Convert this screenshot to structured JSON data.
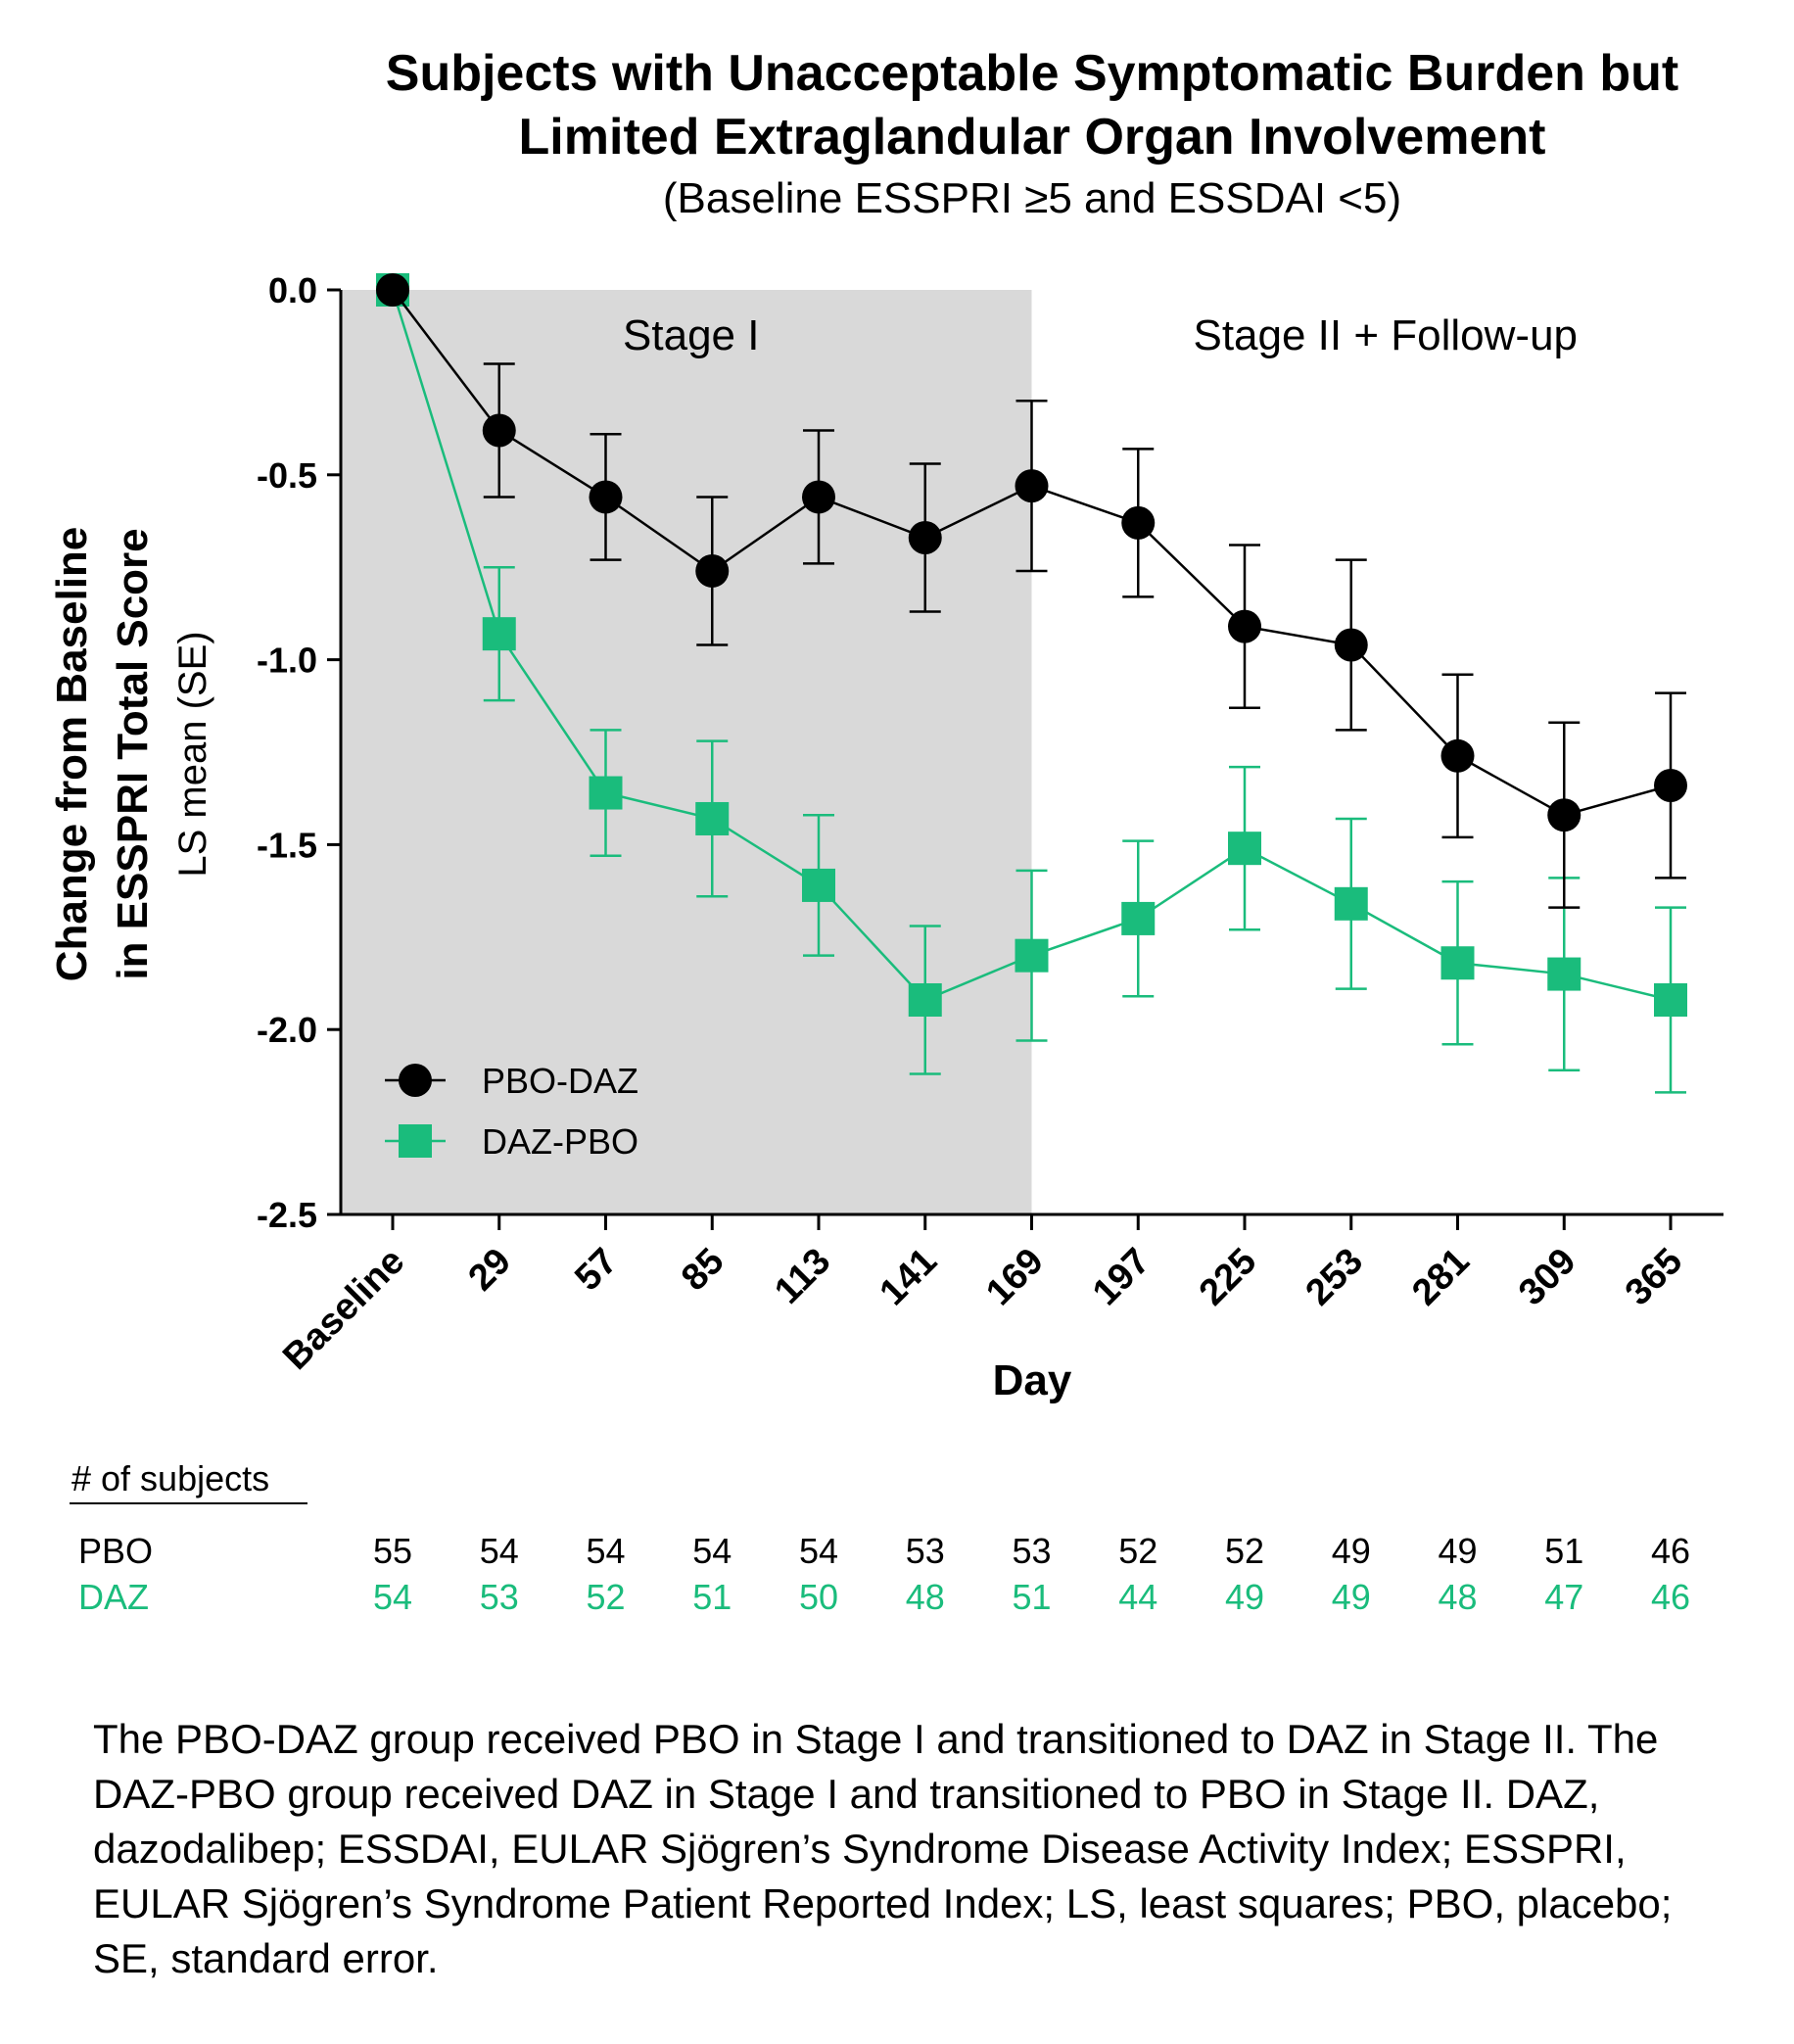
{
  "chart_data": {
    "type": "line",
    "title": "Subjects with Unacceptable Symptomatic Burden but Limited Extraglandular Organ Involvement",
    "title_lines": [
      "Subjects with Unacceptable Symptomatic Burden but",
      "Limited Extraglandular Organ Involvement"
    ],
    "subtitle": "(Baseline ESSPRI ≥5 and ESSDAI <5)",
    "xlabel": "Day",
    "ylabel_lines": [
      "Change from Baseline",
      "in ESSPRI Total Score",
      "LS mean (SE)"
    ],
    "categories": [
      "Baseline",
      "29",
      "57",
      "85",
      "113",
      "141",
      "169",
      "197",
      "225",
      "253",
      "281",
      "309",
      "365"
    ],
    "yticks": [
      "0.0",
      "-0.5",
      "-1.0",
      "-1.5",
      "-2.0",
      "-2.5"
    ],
    "ylim": [
      -2.5,
      0.0
    ],
    "grid": false,
    "shaded_region": {
      "from": "Baseline",
      "to": "169",
      "label": "Stage I",
      "color": "#d9d9d9"
    },
    "unshaded_label": "Stage II + Follow-up",
    "legend_position": "bottom-left",
    "series": [
      {
        "name": "PBO-DAZ",
        "color": "#000000",
        "marker": "circle",
        "values": [
          0.0,
          -0.38,
          -0.56,
          -0.76,
          -0.56,
          -0.67,
          -0.53,
          -0.63,
          -0.91,
          -0.96,
          -1.26,
          -1.42,
          -1.34
        ],
        "se": [
          0.0,
          0.18,
          0.17,
          0.2,
          0.18,
          0.2,
          0.23,
          0.2,
          0.22,
          0.23,
          0.22,
          0.25,
          0.25
        ]
      },
      {
        "name": "DAZ-PBO",
        "color": "#1abc7c",
        "marker": "square",
        "values": [
          0.0,
          -0.93,
          -1.36,
          -1.43,
          -1.61,
          -1.92,
          -1.8,
          -1.7,
          -1.51,
          -1.66,
          -1.82,
          -1.85,
          -1.92
        ],
        "se": [
          0.0,
          0.18,
          0.17,
          0.21,
          0.19,
          0.2,
          0.23,
          0.21,
          0.22,
          0.23,
          0.22,
          0.26,
          0.25
        ]
      }
    ]
  },
  "subjects_table": {
    "header": "# of subjects",
    "rows": [
      {
        "label": "PBO",
        "color": "#000000",
        "values": [
          "55",
          "54",
          "54",
          "54",
          "54",
          "53",
          "53",
          "52",
          "52",
          "49",
          "49",
          "51",
          "46"
        ]
      },
      {
        "label": "DAZ",
        "color": "#1abc7c",
        "values": [
          "54",
          "53",
          "52",
          "51",
          "50",
          "48",
          "51",
          "44",
          "49",
          "49",
          "48",
          "47",
          "46"
        ]
      }
    ]
  },
  "footnote": "The PBO-DAZ group received PBO in Stage I and transitioned to DAZ in Stage II. The DAZ-PBO group received DAZ in Stage I and transitioned to PBO in Stage II. DAZ, dazodalibep; ESSDAI, EULAR Sjögren’s Syndrome Disease Activity Index; ESSPRI, EULAR Sjögren’s Syndrome Patient Reported Index; LS, least squares; PBO, placebo; SE, standard error."
}
